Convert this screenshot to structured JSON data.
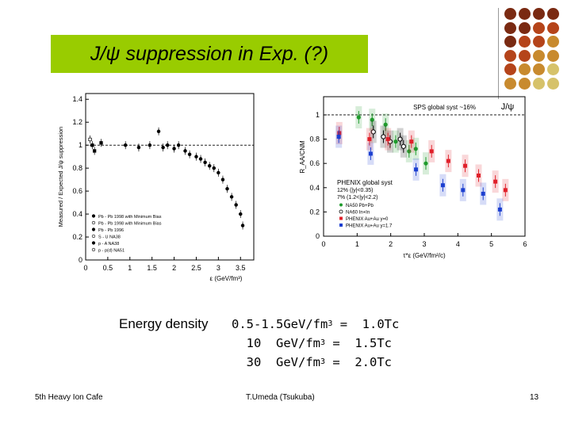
{
  "slide": {
    "title": "J/ψ suppression in Exp. (?)",
    "energy_label": "Energy density",
    "energy_rows": [
      {
        "value": "0.5-1.5GeV/fm",
        "sup": "3",
        "rest": " =  1.0Tc"
      },
      {
        "value": "  10  GeV/fm",
        "sup": "3",
        "rest": " =  1.5Tc"
      },
      {
        "value": "  30  GeV/fm",
        "sup": "3",
        "rest": " =  2.0Tc"
      }
    ],
    "footer_left": "5th Heavy Ion Cafe",
    "footer_center": "T.Umeda (Tsukuba)",
    "footer_right": "13",
    "decor_colors": [
      "#7a2a12",
      "#b5441a",
      "#c88a2e",
      "#d6c26a"
    ]
  },
  "chart_data": [
    {
      "type": "scatter",
      "title": "",
      "xlabel": "ε (GeV/fm³)",
      "ylabel": "Measured / Expected J/ψ suppression",
      "xlim": [
        0,
        3.8
      ],
      "ylim": [
        0,
        1.45
      ],
      "x_ticks": [
        "0",
        "0.5",
        "1",
        "1.5",
        "2",
        "2.5",
        "3",
        "3.5"
      ],
      "y_ticks": [
        "0",
        "0.2",
        "0.4",
        "0.6",
        "0.8",
        "1",
        "1.2",
        "1.4"
      ],
      "legend": [
        "Pb - Pb 1998 with Minimum Bias",
        "Pb - Pb 1998 with Minimum Bias",
        "Pb - Pb 1996",
        "S - U     NA38",
        "p - A     NA38",
        "p - p(d)  NA51"
      ],
      "series": [
        {
          "name": "Pb - Pb 1998 with Minimum Bias",
          "points": [
            [
              1.45,
              1.0
            ],
            [
              1.75,
              0.98
            ],
            [
              2.0,
              0.97
            ],
            [
              2.25,
              0.95
            ],
            [
              2.35,
              0.92
            ],
            [
              2.5,
              0.9
            ],
            [
              2.6,
              0.88
            ],
            [
              2.7,
              0.85
            ],
            [
              2.8,
              0.82
            ],
            [
              2.9,
              0.8
            ],
            [
              3.0,
              0.76
            ],
            [
              3.1,
              0.7
            ],
            [
              3.2,
              0.62
            ],
            [
              3.3,
              0.55
            ],
            [
              3.4,
              0.48
            ],
            [
              3.5,
              0.4
            ],
            [
              3.55,
              0.3
            ]
          ]
        },
        {
          "name": "S - U     NA38",
          "points": [
            [
              0.9,
              1.0
            ],
            [
              1.2,
              0.98
            ],
            [
              1.65,
              1.12
            ],
            [
              1.85,
              1.0
            ],
            [
              2.1,
              1.0
            ]
          ]
        },
        {
          "name": "p - A     NA38",
          "points": [
            [
              0.15,
              1.0
            ],
            [
              0.2,
              0.95
            ],
            [
              0.35,
              1.02
            ]
          ]
        },
        {
          "name": "p - p(d)  NA51",
          "points": [
            [
              0.1,
              1.05
            ]
          ]
        }
      ]
    },
    {
      "type": "scatter",
      "title": "",
      "xlabel": "τ*ε (GeV/fm²/c)",
      "ylabel": "R_AA/CNM",
      "xlim": [
        0,
        6
      ],
      "ylim": [
        0,
        1.15
      ],
      "x_ticks": [
        "0",
        "1",
        "2",
        "3",
        "4",
        "5",
        "6"
      ],
      "y_ticks": [
        "0",
        "0.2",
        "0.4",
        "0.6",
        "0.8",
        "1"
      ],
      "annotations": [
        "SPS global syst ~16%",
        "J/ψ",
        "PHENIX global syst",
        "12% (|y|<0.35)",
        "7% (1.2<|y|<2.2)"
      ],
      "series": [
        {
          "name": "NA50 Pb+Pb",
          "color": "#1f9b2c",
          "points": [
            [
              1.1,
              0.98
            ],
            [
              1.5,
              0.96
            ],
            [
              1.9,
              0.92
            ],
            [
              2.2,
              0.78
            ],
            [
              2.6,
              0.7
            ],
            [
              2.8,
              0.72
            ],
            [
              3.1,
              0.6
            ]
          ]
        },
        {
          "name": "NA60 In+In",
          "color": "#000000",
          "points": [
            [
              1.5,
              0.86
            ],
            [
              1.8,
              0.82
            ],
            [
              2.0,
              0.78
            ],
            [
              2.3,
              0.8
            ],
            [
              2.4,
              0.74
            ]
          ]
        },
        {
          "name": "PHENIX Au+Au y=0",
          "color": "#e0202a",
          "points": [
            [
              0.45,
              0.85
            ],
            [
              1.35,
              0.8
            ],
            [
              1.9,
              0.8
            ],
            [
              2.6,
              0.78
            ],
            [
              3.2,
              0.7
            ],
            [
              3.7,
              0.62
            ],
            [
              4.2,
              0.58
            ],
            [
              4.6,
              0.5
            ],
            [
              5.1,
              0.45
            ],
            [
              5.4,
              0.38
            ]
          ]
        },
        {
          "name": "PHENIX Au+Au y=1.7",
          "color": "#1c3fd0",
          "points": [
            [
              0.4,
              0.82
            ],
            [
              1.35,
              0.68
            ],
            [
              2.7,
              0.55
            ],
            [
              3.5,
              0.42
            ],
            [
              4.1,
              0.38
            ],
            [
              4.7,
              0.35
            ],
            [
              5.2,
              0.22
            ]
          ]
        }
      ],
      "legend": [
        "NA50 Pb+Pb",
        "NA60 In+In",
        "PHENIX Au+Au y=0",
        "PHENIX Au+Au y=1.7"
      ]
    }
  ]
}
